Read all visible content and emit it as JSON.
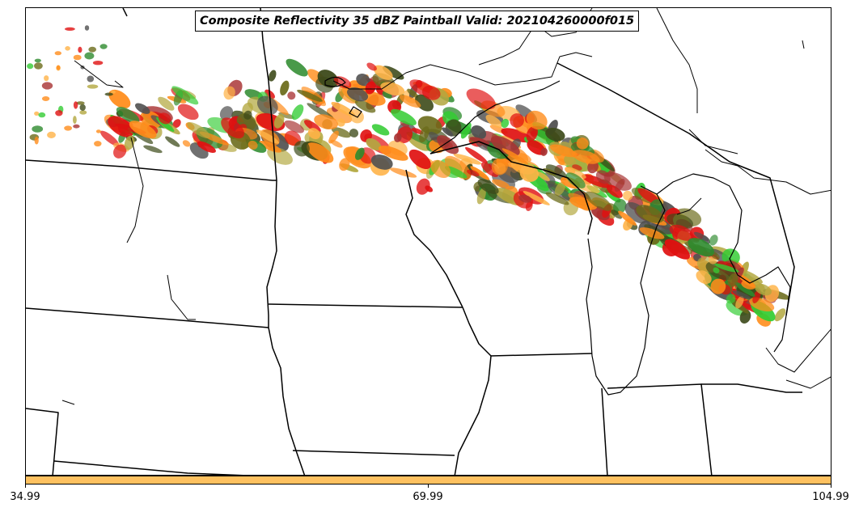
{
  "title": "Composite Reflectivity 35 dBZ Paintball Valid: 202104260000f015",
  "colorbar": {
    "color": "#fec160",
    "ticks": [
      "34.99",
      "69.99",
      "104.99"
    ]
  },
  "colors": {
    "member_green_light": "#33cc33",
    "member_green_dark": "#2e8b2e",
    "member_olive": "#6b6b1a",
    "member_olive_light": "#b3a840",
    "member_orange": "#ff8c1a",
    "member_orange_light": "#ffb347",
    "member_red": "#e01010",
    "member_maroon": "#a83232",
    "member_gray": "#505050",
    "member_darkolive": "#3d4a1a",
    "boundary": "#000000"
  }
}
